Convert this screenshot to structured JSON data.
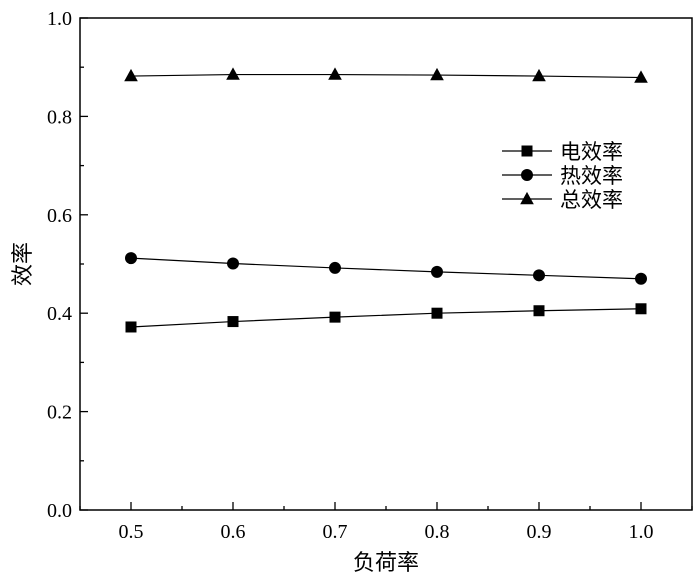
{
  "chart_data": {
    "type": "line",
    "title": "",
    "xlabel": "负荷率",
    "ylabel": "效率",
    "x": [
      0.5,
      0.6,
      0.7,
      0.8,
      0.9,
      1.0
    ],
    "x_ticks": [
      "0.5",
      "0.6",
      "0.7",
      "0.8",
      "0.9",
      "1.0"
    ],
    "xlim": [
      0.45,
      1.05
    ],
    "ylim": [
      0.0,
      1.0
    ],
    "y_ticks": [
      "0.0",
      "0.2",
      "0.4",
      "0.6",
      "0.8",
      "1.0"
    ],
    "grid": false,
    "legend_position": "right",
    "series": [
      {
        "name": "电效率",
        "marker": "square",
        "values": [
          0.372,
          0.383,
          0.392,
          0.4,
          0.405,
          0.409
        ]
      },
      {
        "name": "热效率",
        "marker": "circle",
        "values": [
          0.512,
          0.501,
          0.492,
          0.484,
          0.477,
          0.47
        ]
      },
      {
        "name": "总效率",
        "marker": "triangle",
        "values": [
          0.882,
          0.885,
          0.885,
          0.884,
          0.882,
          0.879
        ]
      }
    ]
  }
}
